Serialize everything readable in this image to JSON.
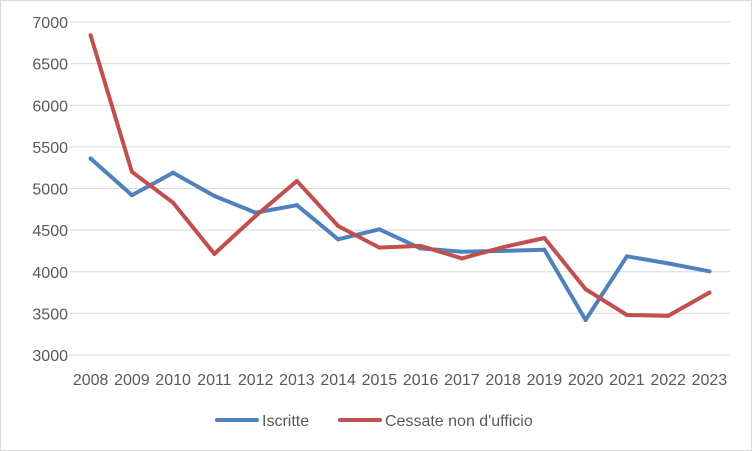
{
  "chart_data": {
    "type": "line",
    "x": [
      "2008",
      "2009",
      "2010",
      "2011",
      "2012",
      "2013",
      "2014",
      "2015",
      "2016",
      "2017",
      "2018",
      "2019",
      "2020",
      "2021",
      "2022",
      "2023"
    ],
    "series": [
      {
        "name": "Iscritte",
        "color": "#4f81bd",
        "values": [
          5360,
          4920,
          5190,
          4910,
          4710,
          4800,
          4390,
          4510,
          4280,
          4240,
          4250,
          4265,
          3420,
          4185,
          4100,
          4005
        ]
      },
      {
        "name": "Cessate non d'ufficio",
        "color": "#c0504d",
        "values": [
          6840,
          5200,
          4830,
          4215,
          4670,
          5090,
          4550,
          4290,
          4310,
          4160,
          4295,
          4405,
          3790,
          3480,
          3470,
          3750
        ]
      }
    ],
    "ylim": [
      3000,
      7000
    ],
    "yticks": [
      3000,
      3500,
      4000,
      4500,
      5000,
      5500,
      6000,
      6500,
      7000
    ],
    "grid": true,
    "legend": "bottom",
    "gridColor": "#d9d9d9",
    "tickColor": "#595959"
  }
}
